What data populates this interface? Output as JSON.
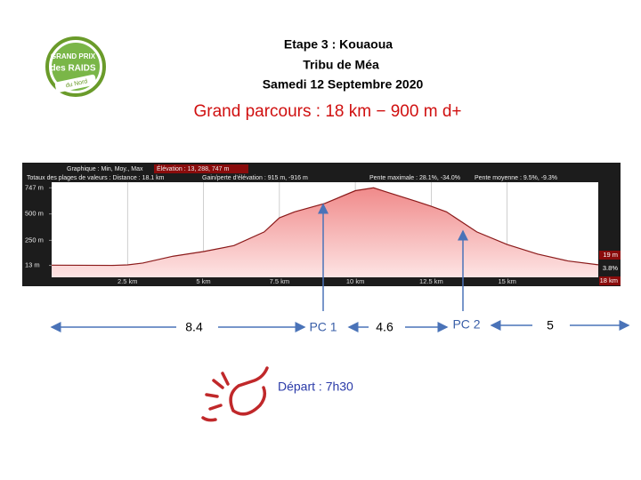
{
  "header": {
    "logo": [
      "GRAND PRIX",
      "des RAIDS",
      "du Nord"
    ],
    "lines": [
      "Etape 3 : Kouaoua",
      "Tribu de Méa",
      "Samedi 12 Septembre 2020"
    ],
    "subtitle": "Grand parcours : 18 km − 900 m d+"
  },
  "chart_data": {
    "type": "area",
    "info": [
      "Graphique : Min, Moy., Max",
      "Élévation : 13, 288, 747 m",
      "Totaux des plages de valeurs : Distance : 18.1 km",
      "Gain/perte d'élévation : 915 m, -916 m",
      "Pente maximale : 28.1%, -34.0%",
      "Pente moyenne : 9.5%, -9.3%"
    ],
    "end_labels": [
      "19 m",
      "3.8%",
      "18 km"
    ],
    "x": [
      0,
      1,
      2,
      2.5,
      3,
      4,
      5,
      6,
      7,
      7.5,
      8,
      9,
      10,
      10.6,
      11,
      12,
      12.5,
      13,
      14,
      15,
      16,
      17,
      18
    ],
    "series": [
      {
        "name": "Élévation",
        "color": "#8b1a1a",
        "values": [
          15,
          14,
          13,
          18,
          35,
          100,
          144,
          200,
          330,
          463,
          520,
          600,
          720,
          747,
          710,
          620,
          572,
          520,
          330,
          211,
          120,
          55,
          19
        ]
      }
    ],
    "xlim": [
      0,
      18
    ],
    "ylim": [
      -100,
      800
    ],
    "xticks": [
      {
        "value": 2.5,
        "label": "2.5 km"
      },
      {
        "value": 5,
        "label": "5 km"
      },
      {
        "value": 7.5,
        "label": "7.5 km"
      },
      {
        "value": 10,
        "label": "10 km"
      },
      {
        "value": 12.5,
        "label": "12.5 km"
      },
      {
        "value": 15,
        "label": "15 km"
      }
    ],
    "yticks": [
      {
        "value": 13,
        "label": "13 m"
      },
      {
        "value": 250,
        "label": "250 m"
      },
      {
        "value": 500,
        "label": "500 m"
      },
      {
        "value": 747,
        "label": "747 m"
      }
    ],
    "grid": true
  },
  "checkpoints": [
    "PC 1",
    "PC 2"
  ],
  "segments": [
    "8.4",
    "4.6",
    "5"
  ],
  "depart": "Départ : 7h30"
}
